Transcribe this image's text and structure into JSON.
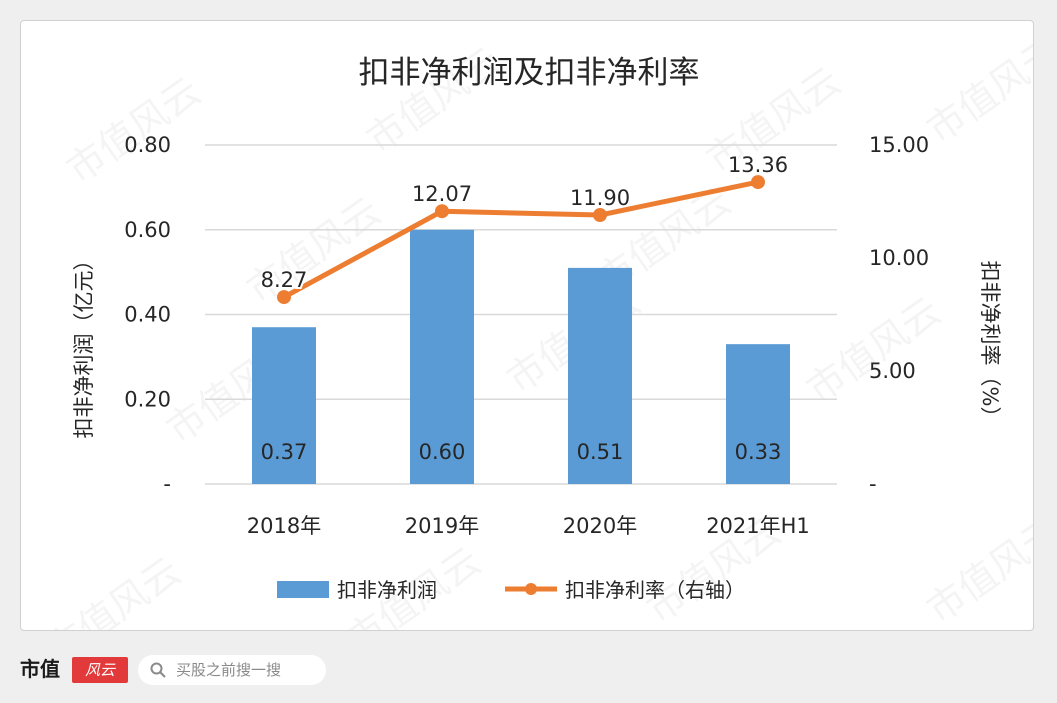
{
  "chart_data": {
    "type": "bar+line",
    "title": "扣非净利润及扣非净利率",
    "categories": [
      "2018年",
      "2019年",
      "2020年",
      "2021年H1"
    ],
    "series": [
      {
        "name": "扣非净利润",
        "type": "bar",
        "axis": "left",
        "values": [
          0.37,
          0.6,
          0.51,
          0.33
        ],
        "labels": [
          "0.37",
          "0.60",
          "0.51",
          "0.33"
        ]
      },
      {
        "name": "扣非净利率（右轴）",
        "type": "line",
        "axis": "right",
        "values": [
          8.27,
          12.07,
          11.9,
          13.36
        ],
        "labels": [
          "8.27",
          "12.07",
          "11.90",
          "13.36"
        ]
      }
    ],
    "y_left": {
      "label": "扣非净利润（亿元）",
      "range": [
        0,
        0.8
      ],
      "ticks": [
        0,
        0.2,
        0.4,
        0.6,
        0.8
      ],
      "tick_labels": [
        "-",
        "0.20",
        "0.40",
        "0.60",
        "0.80"
      ]
    },
    "y_right": {
      "label": "扣非净利率（%）",
      "range": [
        0,
        15
      ],
      "ticks": [
        0,
        5,
        10,
        15
      ],
      "tick_labels": [
        "-",
        "5.00",
        "10.00",
        "15.00"
      ]
    },
    "grid": true,
    "legend_position": "bottom",
    "colors": {
      "bar": "#5b9bd5",
      "line": "#ed7d31",
      "grid": "#d9d9d9",
      "text": "#262626"
    }
  },
  "watermark": "市值风云",
  "footer": {
    "brand": "市值",
    "brand_badge": "风云",
    "search_placeholder": "买股之前搜一搜"
  }
}
